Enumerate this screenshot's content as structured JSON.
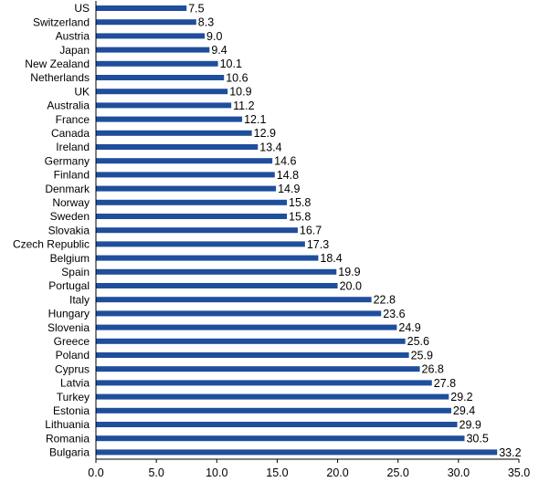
{
  "chart_data": {
    "type": "bar",
    "orientation": "horizontal",
    "title": "",
    "xlabel": "",
    "ylabel": "",
    "categories": [
      "US",
      "Switzerland",
      "Austria",
      "Japan",
      "New Zealand",
      "Netherlands",
      "UK",
      "Australia",
      "France",
      "Canada",
      "Ireland",
      "Germany",
      "Finland",
      "Denmark",
      "Norway",
      "Sweden",
      "Slovakia",
      "Czech Republic",
      "Belgium",
      "Spain",
      "Portugal",
      "Italy",
      "Hungary",
      "Slovenia",
      "Greece",
      "Poland",
      "Cyprus",
      "Latvia",
      "Turkey",
      "Estonia",
      "Lithuania",
      "Romania",
      "Bulgaria"
    ],
    "values": [
      7.5,
      8.3,
      9.0,
      9.4,
      10.1,
      10.6,
      10.9,
      11.2,
      12.1,
      12.9,
      13.4,
      14.6,
      14.8,
      14.9,
      15.8,
      15.8,
      16.7,
      17.3,
      18.4,
      19.9,
      20.0,
      22.8,
      23.6,
      24.9,
      25.6,
      25.9,
      26.8,
      27.8,
      29.2,
      29.4,
      29.9,
      30.5,
      33.2
    ],
    "value_labels": [
      "7.5",
      "8.3",
      "9.0",
      "9.4",
      "10.1",
      "10.6",
      "10.9",
      "11.2",
      "12.1",
      "12.9",
      "13.4",
      "14.6",
      "14.8",
      "14.9",
      "15.8",
      "15.8",
      "16.7",
      "17.3",
      "18.4",
      "19.9",
      "20.0",
      "22.8",
      "23.6",
      "24.9",
      "25.6",
      "25.9",
      "26.8",
      "27.8",
      "29.2",
      "29.4",
      "29.9",
      "30.5",
      "33.2"
    ],
    "xlim": [
      0,
      35
    ],
    "xticks": [
      0,
      5,
      10,
      15,
      20,
      25,
      30,
      35
    ],
    "xtick_labels": [
      "0.0",
      "5.0",
      "10.0",
      "15.0",
      "20.0",
      "25.0",
      "30.0",
      "35.0"
    ],
    "grid": false,
    "legend": "none",
    "bar_color": "#1f4e9c"
  }
}
